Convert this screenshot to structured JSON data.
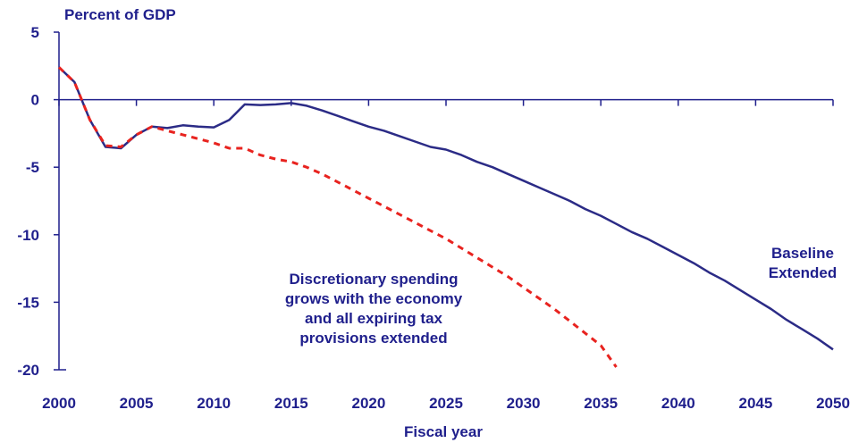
{
  "chart_data": {
    "type": "line",
    "ylabel": "Percent of GDP",
    "xlabel": "Fiscal year",
    "xlim": [
      2000,
      2050
    ],
    "ylim": [
      -20,
      5
    ],
    "xticks": [
      2000,
      2005,
      2010,
      2015,
      2020,
      2025,
      2030,
      2035,
      2040,
      2045,
      2050
    ],
    "yticks": [
      5,
      0,
      -5,
      -10,
      -15,
      -20
    ],
    "xtick_labels": [
      "2000",
      "2005",
      "2010",
      "2015",
      "2020",
      "2025",
      "2030",
      "2035",
      "2040",
      "2045",
      "2050"
    ],
    "ytick_labels": [
      "5",
      "0",
      "-5",
      "-10",
      "-15",
      "-20"
    ],
    "colors": {
      "baseline": "#2b2b86",
      "alternative": "#e8231f",
      "axis": "#1f1f8c"
    },
    "series": [
      {
        "name": "Baseline Extended",
        "label_lines": [
          "Baseline",
          "Extended"
        ],
        "style": "solid",
        "x": [
          2000,
          2001,
          2002,
          2003,
          2004,
          2005,
          2006,
          2007,
          2008,
          2009,
          2010,
          2011,
          2012,
          2013,
          2014,
          2015,
          2016,
          2017,
          2018,
          2019,
          2020,
          2021,
          2022,
          2023,
          2024,
          2025,
          2026,
          2027,
          2028,
          2029,
          2030,
          2031,
          2032,
          2033,
          2034,
          2035,
          2036,
          2037,
          2038,
          2039,
          2040,
          2041,
          2042,
          2043,
          2044,
          2045,
          2046,
          2047,
          2048,
          2049,
          2050
        ],
        "values": [
          2.4,
          1.3,
          -1.5,
          -3.5,
          -3.6,
          -2.6,
          -2.0,
          -2.1,
          -1.9,
          -2.0,
          -2.05,
          -1.5,
          -0.35,
          -0.4,
          -0.35,
          -0.25,
          -0.45,
          -0.8,
          -1.2,
          -1.6,
          -2.0,
          -2.3,
          -2.7,
          -3.1,
          -3.5,
          -3.7,
          -4.1,
          -4.6,
          -5.0,
          -5.5,
          -6.0,
          -6.5,
          -7.0,
          -7.5,
          -8.1,
          -8.6,
          -9.2,
          -9.8,
          -10.3,
          -10.9,
          -11.5,
          -12.1,
          -12.8,
          -13.4,
          -14.1,
          -14.8,
          -15.5,
          -16.3,
          -17.0,
          -17.7,
          -18.5
        ]
      },
      {
        "name": "Discretionary spending grows with the economy and all expiring tax provisions extended",
        "label_lines": [
          "Discretionary spending",
          "grows with the economy",
          "and all expiring tax",
          "provisions extended"
        ],
        "style": "dashed",
        "x": [
          2000,
          2001,
          2002,
          2003,
          2004,
          2005,
          2006,
          2007,
          2008,
          2009,
          2010,
          2011,
          2012,
          2013,
          2014,
          2015,
          2016,
          2017,
          2018,
          2019,
          2020,
          2021,
          2022,
          2023,
          2024,
          2025,
          2026,
          2027,
          2028,
          2029,
          2030,
          2031,
          2032,
          2033,
          2034,
          2035,
          2036
        ],
        "values": [
          2.4,
          1.3,
          -1.5,
          -3.4,
          -3.5,
          -2.6,
          -2.0,
          -2.3,
          -2.6,
          -2.9,
          -3.2,
          -3.6,
          -3.6,
          -4.1,
          -4.4,
          -4.6,
          -5.0,
          -5.5,
          -6.1,
          -6.7,
          -7.3,
          -7.9,
          -8.5,
          -9.1,
          -9.7,
          -10.3,
          -11.0,
          -11.7,
          -12.4,
          -13.1,
          -13.9,
          -14.7,
          -15.5,
          -16.4,
          -17.3,
          -18.2,
          -19.8
        ]
      }
    ]
  }
}
